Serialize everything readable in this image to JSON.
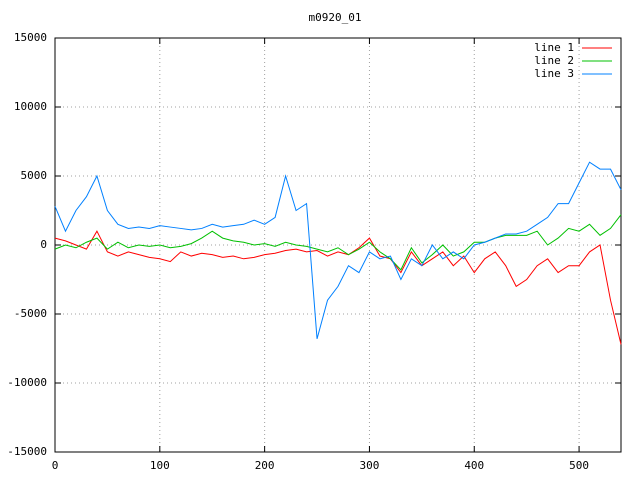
{
  "chart_data": {
    "type": "line",
    "title": "m0920_01",
    "x": [
      0,
      10,
      20,
      30,
      40,
      50,
      60,
      70,
      80,
      90,
      100,
      110,
      120,
      130,
      140,
      150,
      160,
      170,
      180,
      190,
      200,
      210,
      220,
      230,
      240,
      250,
      260,
      270,
      280,
      290,
      300,
      310,
      320,
      330,
      340,
      350,
      360,
      370,
      380,
      390,
      400,
      410,
      420,
      430,
      440,
      450,
      460,
      470,
      480,
      490,
      500,
      510,
      520,
      530,
      540
    ],
    "series": [
      {
        "name": "line 1",
        "color": "#ff0000",
        "values": [
          500,
          300,
          0,
          -300,
          1000,
          -500,
          -800,
          -500,
          -700,
          -900,
          -1000,
          -1200,
          -500,
          -800,
          -600,
          -700,
          -900,
          -800,
          -1000,
          -900,
          -700,
          -600,
          -400,
          -300,
          -500,
          -400,
          -800,
          -500,
          -700,
          -200,
          500,
          -800,
          -1000,
          -2000,
          -500,
          -1500,
          -1000,
          -500,
          -1500,
          -800,
          -2000,
          -1000,
          -500,
          -1500,
          -3000,
          -2500,
          -1500,
          -1000,
          -2000,
          -1500,
          -1500,
          -500,
          0,
          -4000,
          -7200
        ]
      },
      {
        "name": "line 2",
        "color": "#00c000",
        "values": [
          -300,
          0,
          -200,
          200,
          500,
          -300,
          200,
          -200,
          0,
          -100,
          0,
          -200,
          -100,
          100,
          500,
          1000,
          500,
          300,
          200,
          0,
          100,
          -100,
          200,
          0,
          -100,
          -300,
          -500,
          -200,
          -700,
          -300,
          200,
          -500,
          -1000,
          -1800,
          -200,
          -1300,
          -700,
          0,
          -800,
          -500,
          200,
          200,
          500,
          700,
          700,
          700,
          1000,
          0,
          500,
          1200,
          1000,
          1500,
          700,
          1200,
          2200
        ]
      },
      {
        "name": "line 3",
        "color": "#0080ff",
        "values": [
          2800,
          1000,
          2500,
          3500,
          5000,
          2500,
          1500,
          1200,
          1300,
          1200,
          1400,
          1300,
          1200,
          1100,
          1200,
          1500,
          1300,
          1400,
          1500,
          1800,
          1500,
          2000,
          5000,
          2500,
          3000,
          -6800,
          -4000,
          -3000,
          -1500,
          -2000,
          -500,
          -1000,
          -800,
          -2500,
          -1000,
          -1500,
          0,
          -1000,
          -500,
          -1000,
          0,
          200,
          500,
          800,
          800,
          1000,
          1500,
          2000,
          3000,
          3000,
          4500,
          6000,
          5500,
          5500,
          4000
        ]
      }
    ],
    "xlim": [
      0,
      540
    ],
    "xticks": [
      0,
      100,
      200,
      300,
      400,
      500
    ],
    "ylim": [
      -15000,
      15000
    ],
    "yticks": [
      -15000,
      -10000,
      -5000,
      0,
      5000,
      10000,
      15000
    ],
    "grid": true,
    "legend": "top-right"
  }
}
